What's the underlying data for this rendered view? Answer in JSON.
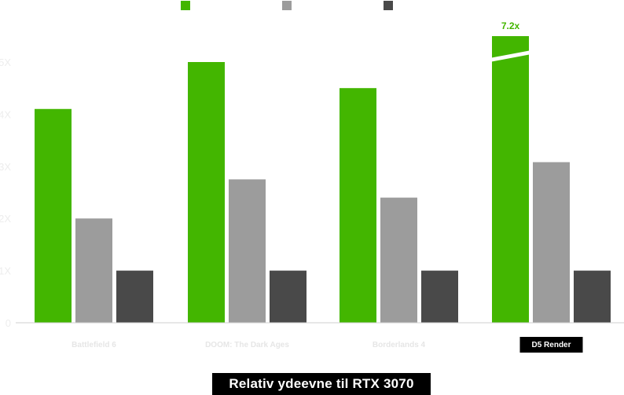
{
  "chart_data": {
    "type": "bar",
    "categories": [
      "Battlefield 6",
      "DOOM: The Dark Ages",
      "Borderlands 4",
      "D5 Render"
    ],
    "highlighted_category": "D5 Render",
    "series": [
      {
        "color": "#43b600",
        "values": [
          4.1,
          5.0,
          4.5,
          7.2
        ]
      },
      {
        "color": "#9c9c9c",
        "values": [
          2.0,
          2.75,
          2.4,
          3.08
        ]
      },
      {
        "color": "#494949",
        "values": [
          1.0,
          1.0,
          1.0,
          1.0
        ]
      }
    ],
    "yticks": [
      "0",
      "1X",
      "2X",
      "3X",
      "4X",
      "5X"
    ],
    "ylim": [
      0,
      5.5
    ],
    "axis_break": {
      "category": "D5 Render",
      "series_index": 0,
      "label": "7.2x"
    },
    "xlabel": "Relativ ydeevne til RTX 3070",
    "legend_position": "top",
    "grid": false
  }
}
